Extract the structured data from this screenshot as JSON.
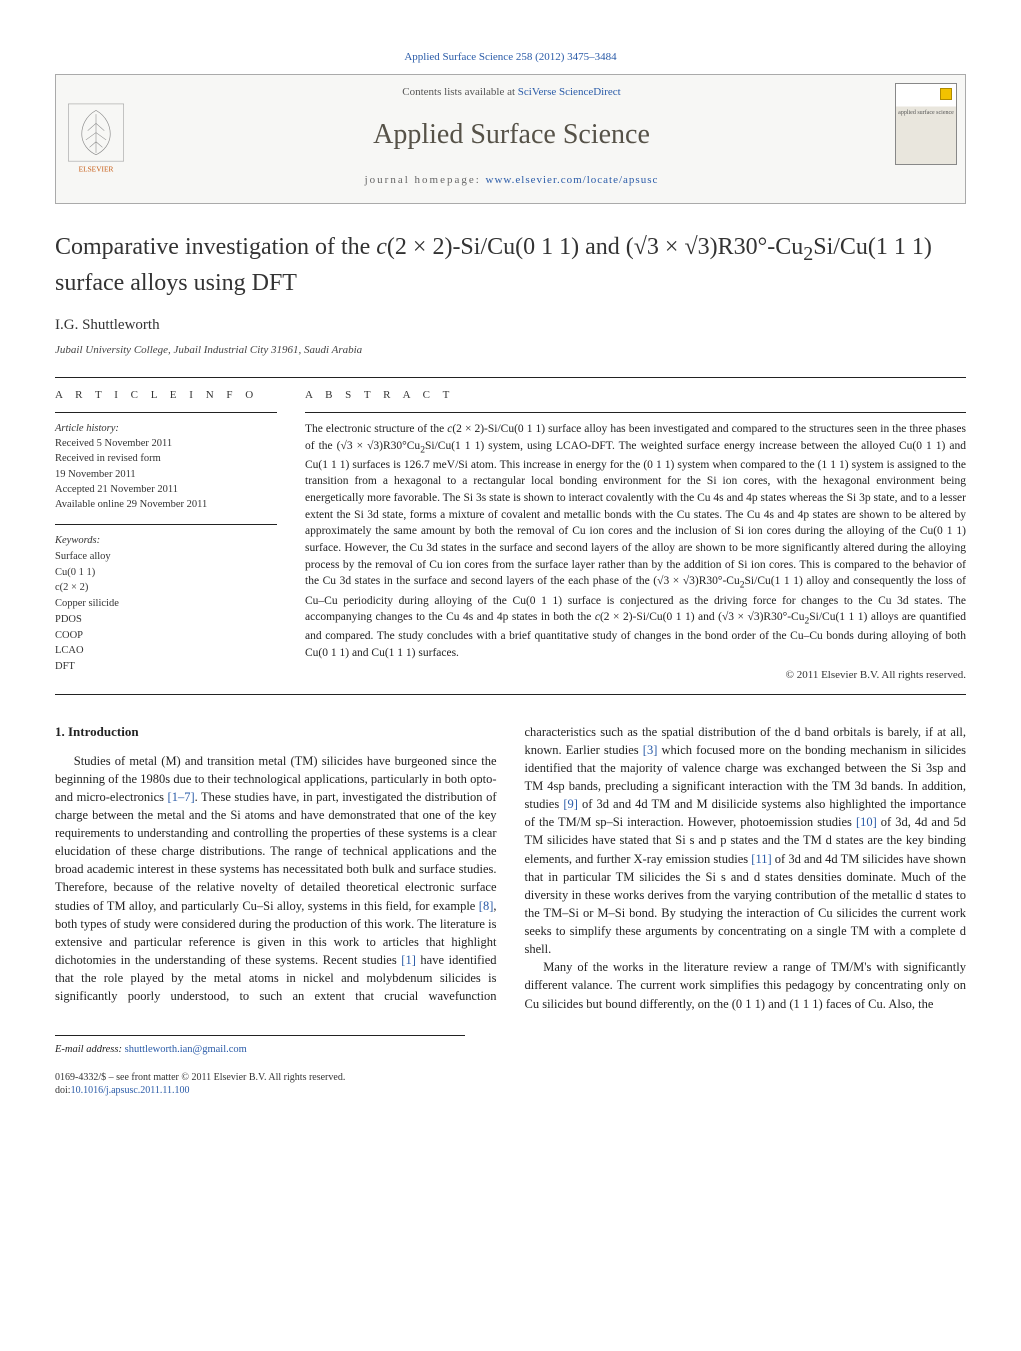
{
  "journal_ref": "Applied Surface Science 258 (2012) 3475–3484",
  "header": {
    "contents_prefix": "Contents lists available at ",
    "contents_link": "SciVerse ScienceDirect",
    "journal_name": "Applied Surface Science",
    "homepage_prefix": "journal homepage: ",
    "homepage_link": "www.elsevier.com/locate/apsusc",
    "publisher_logo_label": "ELSEVIER",
    "cover_label": "applied surface science"
  },
  "title_html": "Comparative investigation of the <i>c</i>(2 × 2)-Si/Cu(0 1 1) and (√3 × √3)R30°-Cu<sub>2</sub>Si/Cu(1 1 1) surface alloys using DFT",
  "authors": "I.G. Shuttleworth",
  "affiliation": "Jubail University College, Jubail Industrial City 31961, Saudi Arabia",
  "article_info": {
    "heading": "A R T I C L E   I N F O",
    "history_label": "Article history:",
    "history": [
      "Received 5 November 2011",
      "Received in revised form",
      "19 November 2011",
      "Accepted 21 November 2011",
      "Available online 29 November 2011"
    ],
    "keywords_label": "Keywords:",
    "keywords": [
      "Surface alloy",
      "Cu(0 1 1)",
      "c(2 × 2)",
      "Copper silicide",
      "PDOS",
      "COOP",
      "LCAO",
      "DFT"
    ]
  },
  "abstract": {
    "heading": "A B S T R A C T",
    "text_html": "The electronic structure of the <i>c</i>(2 × 2)-Si/Cu(0 1 1) surface alloy has been investigated and compared to the structures seen in the three phases of the (√3 × √3)R30°Cu<sub>2</sub>Si/Cu(1 1 1) system, using LCAO-DFT. The weighted surface energy increase between the alloyed Cu(0 1 1) and Cu(1 1 1) surfaces is 126.7 meV/Si atom. This increase in energy for the (0 1 1) system when compared to the (1 1 1) system is assigned to the transition from a hexagonal to a rectangular local bonding environment for the Si ion cores, with the hexagonal environment being energetically more favorable. The Si 3s state is shown to interact covalently with the Cu 4s and 4p states whereas the Si 3p state, and to a lesser extent the Si 3d state, forms a mixture of covalent and metallic bonds with the Cu states. The Cu 4s and 4p states are shown to be altered by approximately the same amount by both the removal of Cu ion cores and the inclusion of Si ion cores during the alloying of the Cu(0 1 1) surface. However, the Cu 3d states in the surface and second layers of the alloy are shown to be more significantly altered during the alloying process by the removal of Cu ion cores from the surface layer rather than by the addition of Si ion cores. This is compared to the behavior of the Cu 3d states in the surface and second layers of the each phase of the (√3 × √3)R30°-Cu<sub>2</sub>Si/Cu(1 1 1) alloy and consequently the loss of Cu–Cu periodicity during alloying of the Cu(0 1 1) surface is conjectured as the driving force for changes to the Cu 3d states. The accompanying changes to the Cu 4s and 4p states in both the <i>c</i>(2 × 2)-Si/Cu(0 1 1) and (√3 × √3)R30°-Cu<sub>2</sub>Si/Cu(1 1 1) alloys are quantified and compared. The study concludes with a brief quantitative study of changes in the bond order of the Cu–Cu bonds during alloying of both Cu(0 1 1) and Cu(1 1 1) surfaces.",
    "copyright": "© 2011 Elsevier B.V. All rights reserved."
  },
  "body": {
    "section_number": "1.",
    "section_title": "Introduction",
    "para1_html": "Studies of metal (M) and transition metal (TM) silicides have burgeoned since the beginning of the 1980s due to their technological applications, particularly in both opto- and micro-electronics <span class=\"cite\">[1–7]</span>. These studies have, in part, investigated the distribution of charge between the metal and the Si atoms and have demonstrated that one of the key requirements to understanding and controlling the properties of these systems is a clear elucidation of these charge distributions. The range of technical applications and the broad academic interest in these systems has necessitated both bulk and surface studies. Therefore, because of the relative novelty of detailed theoretical electronic surface studies of TM alloy, and particularly Cu–Si alloy, systems in this field, for example <span class=\"cite\">[8]</span>, both types of study were considered during the production of this work. The literature is extensive and particular reference is given in this work to articles that highlight dichotomies in the understanding of these systems. Recent studies <span class=\"cite\">[1]</span> have identified that the role played by the metal atoms in nickel and molybdenum silicides is significantly poorly understood, to such an extent that crucial wavefunction characteristics such as the spatial distribution of the d band orbitals is barely, if at all, known. Earlier studies <span class=\"cite\">[3]</span> which focused more on the bonding mechanism in silicides identified that the majority of valence charge was exchanged between the Si 3sp and TM 4sp bands, precluding a significant interaction with the TM 3d bands. In addition, studies <span class=\"cite\">[9]</span> of 3d and 4d TM and M disilicide systems also highlighted the importance of the TM/M sp–Si interaction. However, photoemission studies <span class=\"cite\">[10]</span> of 3d, 4d and 5d TM silicides have stated that Si s and p states and the TM d states are the key binding elements, and further X-ray emission studies <span class=\"cite\">[11]</span> of 3d and 4d TM silicides have shown that in particular TM silicides the Si s and d states densities dominate. Much of the diversity in these works derives from the varying contribution of the metallic d states to the TM–Si or M–Si bond. By studying the interaction of Cu silicides the current work seeks to simplify these arguments by concentrating on a single TM with a complete d shell.",
    "para2_html": "Many of the works in the literature review a range of TM/M's with significantly different valance. The current work simplifies this pedagogy by concentrating only on Cu silicides but bound differently, on the (0 1 1) and (1 1 1) faces of Cu. Also, the"
  },
  "footnote": {
    "label": "E-mail address:",
    "email": "shuttleworth.ian@gmail.com"
  },
  "footer": {
    "line1": "0169-4332/$ – see front matter © 2011 Elsevier B.V. All rights reserved.",
    "doi_prefix": "doi:",
    "doi": "10.1016/j.apsusc.2011.11.100"
  },
  "colors": {
    "link": "#2a5ba8",
    "text": "#222222",
    "rule": "#222222",
    "header_bg": "#f7f7f5"
  }
}
